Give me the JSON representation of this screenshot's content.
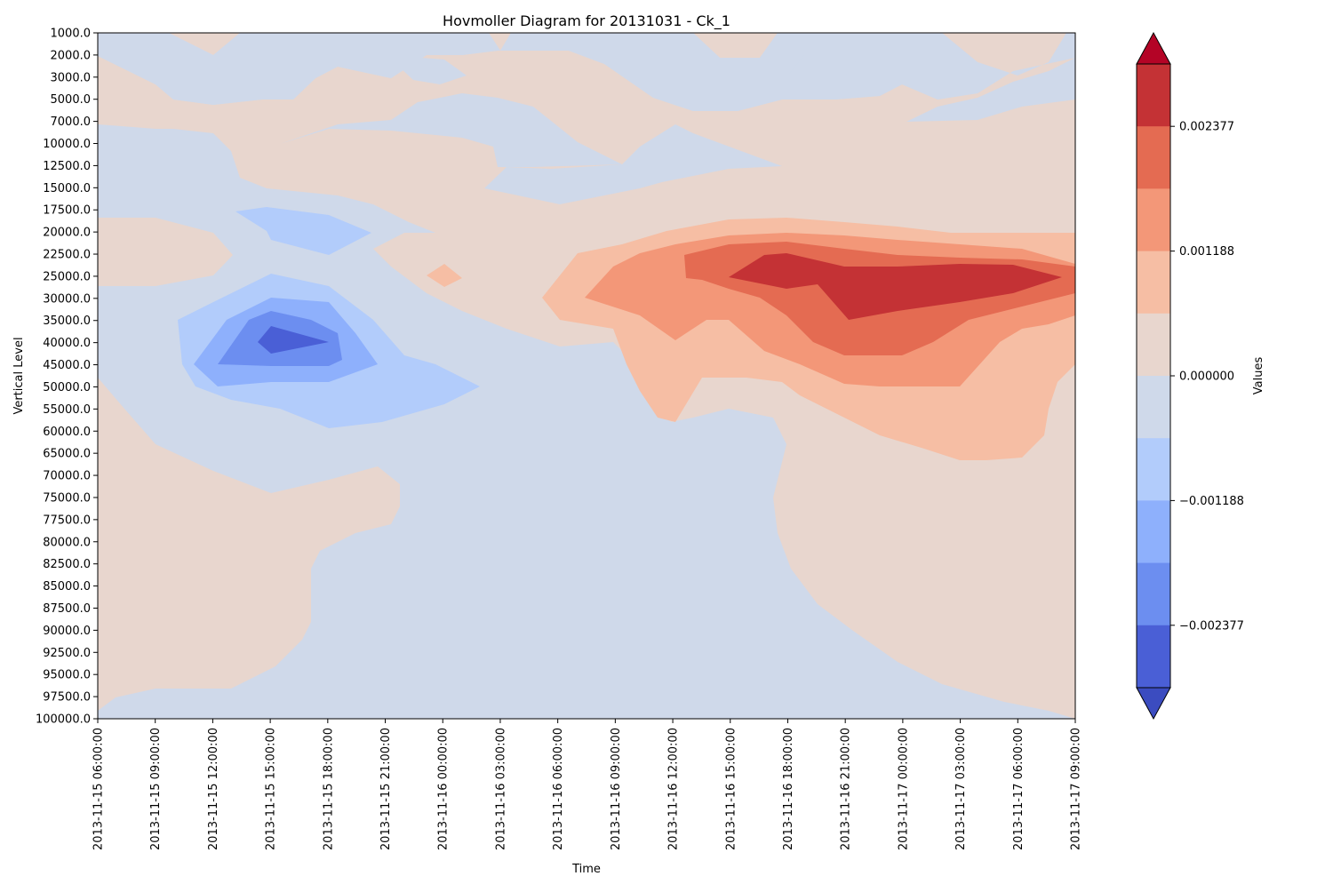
{
  "chart_data": {
    "type": "heatmap",
    "title": "Hovmoller Diagram for 20131031 - Ck_1",
    "xlabel": "Time",
    "ylabel": "Vertical Level",
    "colorbar_label": "Values",
    "x_ticks": [
      "2013-11-15 06:00:00",
      "2013-11-15 09:00:00",
      "2013-11-15 12:00:00",
      "2013-11-15 15:00:00",
      "2013-11-15 18:00:00",
      "2013-11-15 21:00:00",
      "2013-11-16 00:00:00",
      "2013-11-16 03:00:00",
      "2013-11-16 06:00:00",
      "2013-11-16 09:00:00",
      "2013-11-16 12:00:00",
      "2013-11-16 15:00:00",
      "2013-11-16 18:00:00",
      "2013-11-16 21:00:00",
      "2013-11-17 00:00:00",
      "2013-11-17 03:00:00",
      "2013-11-17 06:00:00",
      "2013-11-17 09:00:00"
    ],
    "y_ticks": [
      "1000.0",
      "2000.0",
      "3000.0",
      "5000.0",
      "7000.0",
      "10000.0",
      "12500.0",
      "15000.0",
      "17500.0",
      "20000.0",
      "22500.0",
      "25000.0",
      "30000.0",
      "35000.0",
      "40000.0",
      "45000.0",
      "50000.0",
      "55000.0",
      "60000.0",
      "65000.0",
      "70000.0",
      "75000.0",
      "77500.0",
      "80000.0",
      "82500.0",
      "85000.0",
      "87500.0",
      "90000.0",
      "92500.0",
      "95000.0",
      "97500.0",
      "100000.0"
    ],
    "levels_scale": "categorical (inverted, 1000.0 at top)",
    "colorbar_ticks": [
      "0.002377",
      "0.001188",
      "0.000000",
      "−0.001188",
      "−0.002377"
    ],
    "colorbar_extend": "both",
    "colormap": [
      "#3b4cc0",
      "#4a5fd6",
      "#6c8ef0",
      "#8eb0fc",
      "#b2ccfb",
      "#cfd9ea",
      "#e8d6ce",
      "#f6bea4",
      "#f39778",
      "#e46b52",
      "#c43235",
      "#b40426"
    ],
    "regions": [
      {
        "name": "weak-positive",
        "level": 6
      },
      {
        "name": "moderate-positive",
        "level": 7
      },
      {
        "name": "strong-positive",
        "level": 8
      },
      {
        "name": "very-strong-positive",
        "level": 9
      },
      {
        "name": "peak-positive",
        "level": 10
      },
      {
        "name": "weak-negative",
        "level": 4
      },
      {
        "name": "moderate-negative",
        "level": 3
      },
      {
        "name": "strong-negative",
        "level": 2
      },
      {
        "name": "peak-negative",
        "level": 1
      }
    ]
  }
}
